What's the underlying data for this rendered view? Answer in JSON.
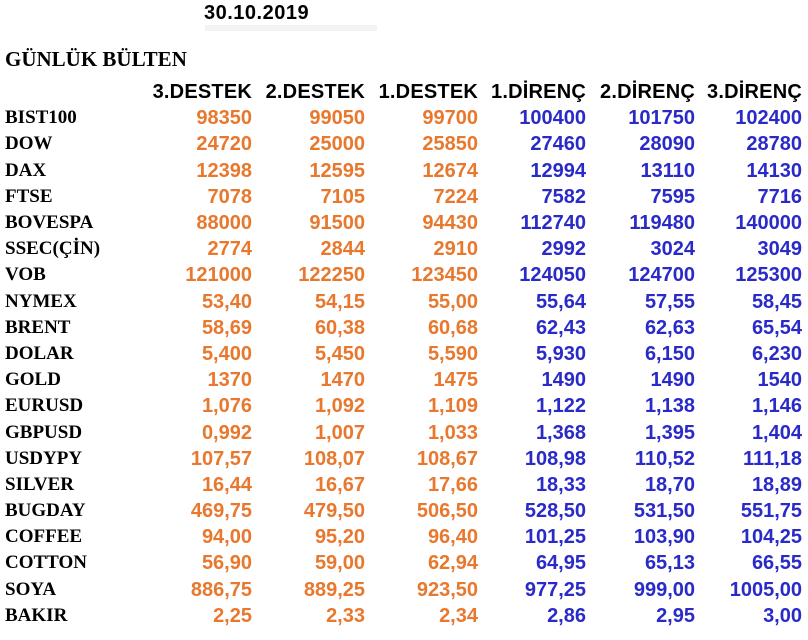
{
  "date": "30.10.2019",
  "title": "GÜNLÜK BÜLTEN",
  "columns": [
    "3.DESTEK",
    "2.DESTEK",
    "1.DESTEK",
    "1.DİRENÇ",
    "2.DİRENÇ",
    "3.DİRENÇ"
  ],
  "colors": {
    "support": "#e8782d",
    "resistance": "#2a2ac8",
    "text": "#000000",
    "background": "#ffffff"
  },
  "rows": [
    {
      "label": "BIST100",
      "values": [
        "98350",
        "99050",
        "99700",
        "100400",
        "101750",
        "102400"
      ]
    },
    {
      "label": "DOW",
      "values": [
        "24720",
        "25000",
        "25850",
        "27460",
        "28090",
        "28780"
      ]
    },
    {
      "label": "DAX",
      "values": [
        "12398",
        "12595",
        "12674",
        "12994",
        "13110",
        "14130"
      ]
    },
    {
      "label": "FTSE",
      "values": [
        "7078",
        "7105",
        "7224",
        "7582",
        "7595",
        "7716"
      ]
    },
    {
      "label": "BOVESPA",
      "values": [
        "88000",
        "91500",
        "94430",
        "112740",
        "119480",
        "140000"
      ]
    },
    {
      "label": "SSEC(ÇİN)",
      "values": [
        "2774",
        "2844",
        "2910",
        "2992",
        "3024",
        "3049"
      ]
    },
    {
      "label": "VOB",
      "values": [
        "121000",
        "122250",
        "123450",
        "124050",
        "124700",
        "125300"
      ]
    },
    {
      "label": "NYMEX",
      "values": [
        "53,40",
        "54,15",
        "55,00",
        "55,64",
        "57,55",
        "58,45"
      ]
    },
    {
      "label": "BRENT",
      "values": [
        "58,69",
        "60,38",
        "60,68",
        "62,43",
        "62,63",
        "65,54"
      ]
    },
    {
      "label": "DOLAR",
      "values": [
        "5,400",
        "5,450",
        "5,590",
        "5,930",
        "6,150",
        "6,230"
      ]
    },
    {
      "label": "GOLD",
      "values": [
        "1370",
        "1470",
        "1475",
        "1490",
        "1490",
        "1540"
      ]
    },
    {
      "label": "EURUSD",
      "values": [
        "1,076",
        "1,092",
        "1,109",
        "1,122",
        "1,138",
        "1,146"
      ]
    },
    {
      "label": "GBPUSD",
      "values": [
        "0,992",
        "1,007",
        "1,033",
        "1,368",
        "1,395",
        "1,404"
      ]
    },
    {
      "label": "USDYPY",
      "values": [
        "107,57",
        "108,07",
        "108,67",
        "108,98",
        "110,52",
        "111,18"
      ]
    },
    {
      "label": "SILVER",
      "values": [
        "16,44",
        "16,67",
        "17,66",
        "18,33",
        "18,70",
        "18,89"
      ]
    },
    {
      "label": "BUGDAY",
      "values": [
        "469,75",
        "479,50",
        "506,50",
        "528,50",
        "531,50",
        "551,75"
      ]
    },
    {
      "label": "COFFEE",
      "values": [
        "94,00",
        "95,20",
        "96,40",
        "101,25",
        "103,90",
        "104,25"
      ]
    },
    {
      "label": "COTTON",
      "values": [
        "56,90",
        "59,00",
        "62,94",
        "64,95",
        "65,13",
        "66,55"
      ]
    },
    {
      "label": "SOYA",
      "values": [
        "886,75",
        "889,25",
        "923,50",
        "977,25",
        "999,00",
        "1005,00"
      ]
    },
    {
      "label": "BAKIR",
      "values": [
        "2,25",
        "2,33",
        "2,34",
        "2,86",
        "2,95",
        "3,00"
      ]
    }
  ]
}
